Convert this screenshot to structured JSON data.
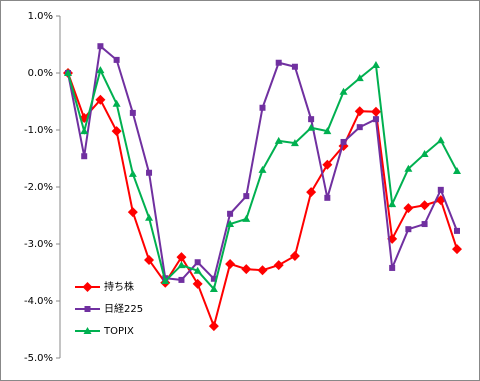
{
  "chart_data": {
    "type": "line",
    "series": [
      {
        "name": "持ち株",
        "color": "#ff0000",
        "marker": "diamond",
        "values": [
          0,
          -0.79,
          -0.47,
          -1.02,
          -2.44,
          -3.28,
          -3.68,
          -3.23,
          -3.7,
          -4.44,
          -3.35,
          -3.44,
          -3.46,
          -3.37,
          -3.21,
          -2.09,
          -1.61,
          -1.28,
          -0.67,
          -0.68,
          -2.91,
          -2.37,
          -2.32,
          -2.23,
          -3.09
        ]
      },
      {
        "name": "日経225",
        "color": "#7030a0",
        "marker": "square",
        "values": [
          0,
          -1.46,
          0.47,
          0.23,
          -0.7,
          -1.75,
          -3.6,
          -3.63,
          -3.32,
          -3.61,
          -2.47,
          -2.16,
          -0.61,
          0.18,
          0.11,
          -0.81,
          -2.19,
          -1.21,
          -0.95,
          -0.81,
          -3.42,
          -2.74,
          -2.65,
          -2.05,
          -2.77
        ]
      },
      {
        "name": "TOPIX",
        "color": "#00b050",
        "marker": "triangle",
        "values": [
          0,
          -1.02,
          0.05,
          -0.54,
          -1.77,
          -2.54,
          -3.65,
          -3.37,
          -3.47,
          -3.79,
          -2.65,
          -2.56,
          -1.7,
          -1.19,
          -1.23,
          -0.96,
          -1.02,
          -0.33,
          -0.09,
          0.14,
          -2.3,
          -1.68,
          -1.42,
          -1.18,
          -1.72
        ]
      }
    ],
    "ylim": [
      -5,
      1
    ],
    "yticks": [
      {
        "value": 1,
        "label": "1.0%"
      },
      {
        "value": 0,
        "label": "0.0%"
      },
      {
        "value": -1,
        "label": "-1.0%"
      },
      {
        "value": -2,
        "label": "-2.0%"
      },
      {
        "value": -3,
        "label": "-3.0%"
      },
      {
        "value": -4,
        "label": "-4.0%"
      },
      {
        "value": -5,
        "label": "-5.0%"
      }
    ],
    "grid": false,
    "legend": "lower left"
  }
}
